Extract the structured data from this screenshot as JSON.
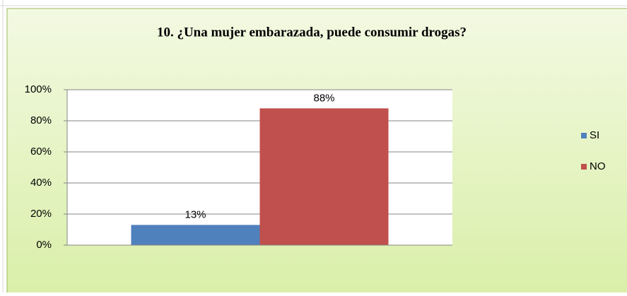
{
  "chart_data": {
    "type": "bar",
    "title": "10. ¿Una mujer embarazada,  puede  consumir drogas?",
    "categories": [
      null
    ],
    "series": [
      {
        "name": "SI",
        "color": "#4f81bd",
        "values": [
          13
        ],
        "value_labels": [
          "13%"
        ]
      },
      {
        "name": "NO",
        "color": "#c0504d",
        "values": [
          88
        ],
        "value_labels": [
          "88%"
        ]
      }
    ],
    "ylim": [
      0,
      100
    ],
    "yticks": [
      {
        "value": 0,
        "label": "0%"
      },
      {
        "value": 20,
        "label": "20%"
      },
      {
        "value": 40,
        "label": "40%"
      },
      {
        "value": 60,
        "label": "60%"
      },
      {
        "value": 80,
        "label": "80%"
      },
      {
        "value": 100,
        "label": "100%"
      }
    ],
    "grid": true,
    "legend": "right"
  }
}
